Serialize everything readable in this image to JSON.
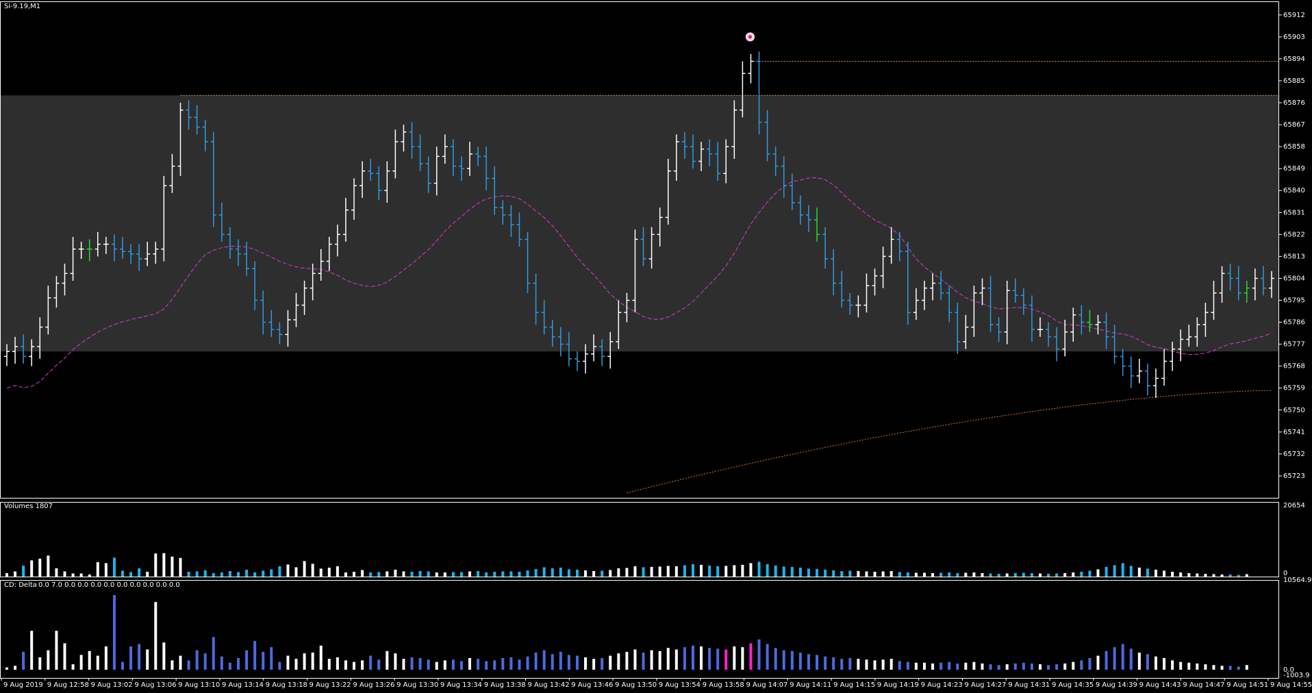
{
  "window": {
    "title": "Si-9.19,M1"
  },
  "colors": {
    "background": "#000000",
    "zone": "#2e2e2e",
    "bull": "#ffffff",
    "bear": "#2f9be0",
    "neutral": "#22dd33",
    "ma_fast": "#d63fd6",
    "ma_slow": "#e0782e",
    "level": "#d8a070",
    "delta_neg": "#4a6be0",
    "delta_pos": "#ffffff",
    "delta_extreme": "#ff22cc",
    "axis": "#ffffff"
  },
  "chart_data": [
    {
      "type": "ohlc",
      "title": "Si-9.19,M1",
      "yticks": [
        65723,
        65732,
        65741,
        65750,
        65759,
        65768,
        65777,
        65786,
        65795,
        65804,
        65813,
        65822,
        65831,
        65840,
        65849,
        65858,
        65867,
        65876,
        65885,
        65894,
        65903,
        65912
      ],
      "ylim": [
        65714,
        65917
      ],
      "xlabels": [
        "9 Aug 2019",
        "9 Aug 12:58",
        "9 Aug 13:02",
        "9 Aug 13:06",
        "9 Aug 13:10",
        "9 Aug 13:14",
        "9 Aug 13:18",
        "9 Aug 13:22",
        "9 Aug 13:26",
        "9 Aug 13:30",
        "9 Aug 13:34",
        "9 Aug 13:38",
        "9 Aug 13:42",
        "9 Aug 13:46",
        "9 Aug 13:50",
        "9 Aug 13:54",
        "9 Aug 13:58",
        "9 Aug 14:07",
        "9 Aug 14:11",
        "9 Aug 14:15",
        "9 Aug 14:19",
        "9 Aug 14:23",
        "9 Aug 14:27",
        "9 Aug 14:31",
        "9 Aug 14:35",
        "9 Aug 14:39",
        "9 Aug 14:43",
        "9 Aug 14:47",
        "9 Aug 14:51",
        "9 Aug 14:55"
      ],
      "zone": [
        65774,
        65879
      ],
      "level_lines": [
        65879,
        65893
      ],
      "marker": 65903,
      "closes": [
        65774,
        65776,
        65772,
        65776,
        65784,
        65796,
        65802,
        65806,
        65816,
        65816,
        65816,
        65818,
        65818,
        65816,
        65815,
        65814,
        65812,
        65814,
        65816,
        65842,
        65850,
        65873,
        65870,
        65866,
        65860,
        65830,
        65822,
        65816,
        65814,
        65808,
        65795,
        65786,
        65783,
        65781,
        65787,
        65793,
        65800,
        65806,
        65811,
        65818,
        65822,
        65832,
        65842,
        65848,
        65847,
        65840,
        65848,
        65860,
        65864,
        65858,
        65851,
        65843,
        65854,
        65858,
        65850,
        65849,
        65855,
        65854,
        65845,
        65833,
        65830,
        65826,
        65820,
        65802,
        65790,
        65784,
        65780,
        65777,
        65771,
        65770,
        65773,
        65776,
        65772,
        65778,
        65790,
        65795,
        65820,
        65812,
        65822,
        65829,
        65848,
        65860,
        65858,
        65852,
        65857,
        65855,
        65847,
        65858,
        65873,
        65888,
        65893,
        65868,
        65855,
        65850,
        65842,
        65835,
        65830,
        65828,
        65822,
        65812,
        65802,
        65795,
        65793,
        65793,
        65801,
        65805,
        65813,
        65820,
        65815,
        65790,
        65795,
        65800,
        65802,
        65798,
        65790,
        65778,
        65784,
        65798,
        65800,
        65785,
        65782,
        65799,
        65797,
        65793,
        65783,
        65783,
        65780,
        65775,
        65782,
        65789,
        65786,
        65785,
        65786,
        65780,
        65772,
        65768,
        65764,
        65766,
        65760,
        65763,
        65770,
        65775,
        65779,
        65780,
        65785,
        65790,
        65798,
        65806,
        65804,
        65798,
        65800,
        65804,
        65800,
        65804
      ],
      "series": [
        {
          "name": "",
          "kind": "ma_fast"
        },
        {
          "name": "",
          "kind": "ma_slow"
        }
      ]
    },
    {
      "type": "bar",
      "title": "Volumes 1807",
      "ylim": [
        0,
        20654
      ],
      "yticks": [
        "20654",
        "0"
      ],
      "values": [
        1000,
        1500,
        3200,
        4700,
        5200,
        6100,
        2400,
        1500,
        900,
        900,
        600,
        4200,
        3900,
        5500,
        1700,
        1300,
        2400,
        1400,
        6700,
        6800,
        5800,
        5400,
        1400,
        1500,
        1800,
        1000,
        1200,
        1600,
        1300,
        2000,
        1200,
        1700,
        2100,
        3000,
        3500,
        2700,
        4500,
        3700,
        2300,
        2600,
        3000,
        1200,
        1400,
        1900,
        1200,
        1300,
        1500,
        2000,
        1500,
        1400,
        1600,
        1500,
        1200,
        1200,
        1300,
        1300,
        1500,
        1600,
        1200,
        1400,
        1500,
        1500,
        1400,
        1800,
        2200,
        2700,
        2400,
        2600,
        2100,
        2000,
        1800,
        1600,
        1700,
        1900,
        2400,
        2500,
        3000,
        2700,
        2800,
        2900,
        3100,
        3000,
        3300,
        3600,
        3400,
        3200,
        3000,
        3100,
        3300,
        3400,
        3900,
        4300,
        3600,
        3200,
        2900,
        2800,
        2600,
        2300,
        2200,
        2000,
        1800,
        1600,
        1700,
        1600,
        1500,
        1400,
        1500,
        1600,
        1300,
        1200,
        1100,
        1100,
        1000,
        1100,
        1200,
        1000,
        1100,
        1200,
        1000,
        900,
        800,
        900,
        1000,
        1100,
        1000,
        900,
        800,
        900,
        1000,
        1200,
        1400,
        1700,
        2100,
        2800,
        3300,
        3900,
        3100,
        2600,
        2300,
        2000,
        1700,
        1400,
        1200,
        1000,
        900,
        800,
        700,
        600,
        600,
        500,
        700
      ]
    },
    {
      "type": "bar",
      "title": "CD: Delta",
      "header_values": "0.0 7.0 0.0 0.0 0.0 0.0 0.0 0.0 0.0 0.0 0.0",
      "ylim": [
        0,
        10564.9
      ],
      "yticks": [
        "10564.9",
        "0.0",
        "-1003.9"
      ],
      "values": [
        300,
        500,
        2300,
        5000,
        1600,
        2500,
        5000,
        3400,
        700,
        1900,
        2400,
        1800,
        3000,
        9600,
        1000,
        3000,
        3300,
        2600,
        8700,
        3500,
        1200,
        1800,
        1200,
        2500,
        2100,
        4200,
        1700,
        900,
        1500,
        2500,
        3700,
        2300,
        2900,
        1000,
        1800,
        1400,
        2100,
        2200,
        3100,
        1400,
        1600,
        1200,
        1000,
        1200,
        1800,
        1300,
        2400,
        2100,
        1400,
        1600,
        1500,
        1300,
        1000,
        1200,
        1300,
        1100,
        1500,
        1400,
        1100,
        1200,
        1500,
        1600,
        1300,
        1700,
        2200,
        2500,
        2000,
        2300,
        1900,
        1800,
        1600,
        1400,
        1500,
        1800,
        2100,
        2300,
        2600,
        2200,
        2500,
        2400,
        2800,
        2600,
        2900,
        3100,
        3000,
        2800,
        2700,
        2600,
        3000,
        2900,
        3400,
        3900,
        3300,
        2800,
        2500,
        2400,
        2200,
        2000,
        1900,
        1700,
        1600,
        1400,
        1500,
        1400,
        1300,
        1200,
        1300,
        1400,
        1100,
        1000,
        900,
        900,
        800,
        900,
        1000,
        800,
        900,
        1000,
        800,
        700,
        600,
        700,
        800,
        900,
        800,
        700,
        600,
        700,
        800,
        1000,
        1200,
        1500,
        1800,
        2400,
        2900,
        3300,
        2700,
        2200,
        2000,
        1700,
        1500,
        1200,
        1000,
        900,
        800,
        700,
        600,
        500,
        500,
        400,
        600
      ]
    }
  ]
}
